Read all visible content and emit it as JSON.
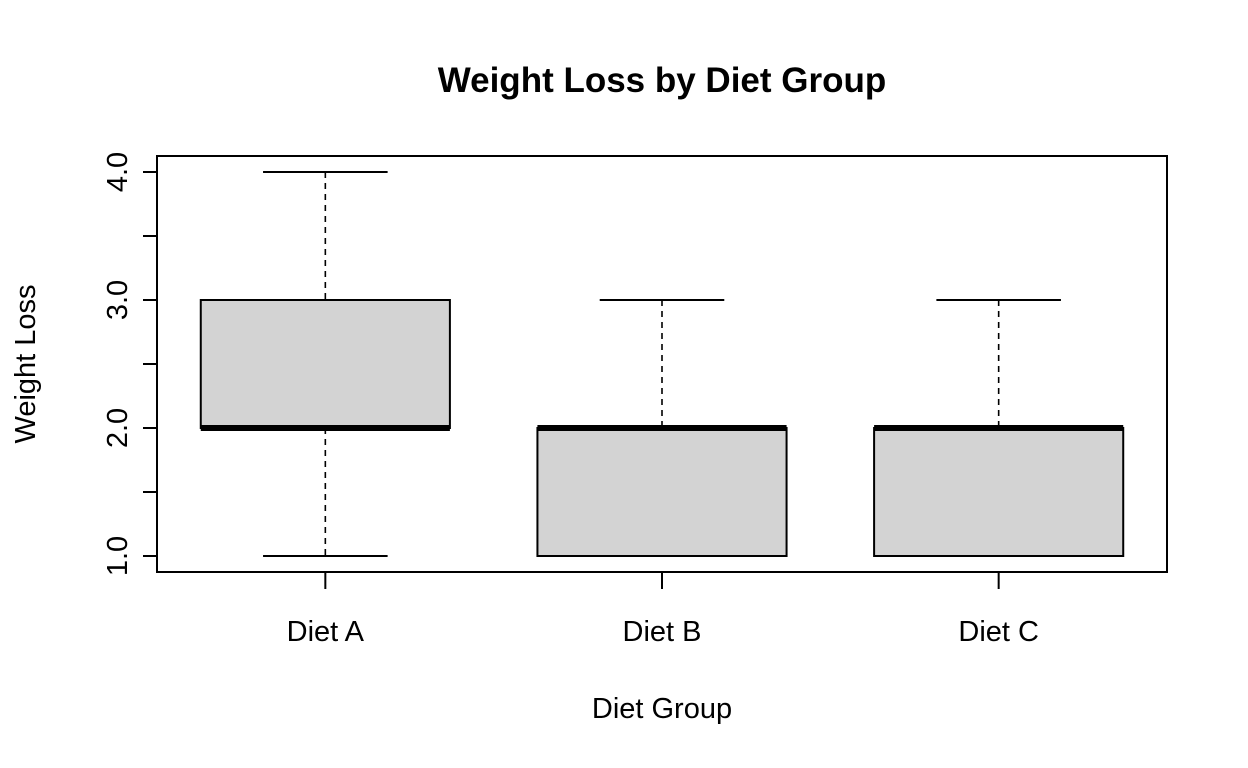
{
  "chart_data": {
    "type": "boxplot",
    "title": "Weight Loss by Diet Group",
    "xlabel": "Diet Group",
    "ylabel": "Weight Loss",
    "categories": [
      "Diet A",
      "Diet B",
      "Diet C"
    ],
    "boxes": [
      {
        "category": "Diet A",
        "min": 1.0,
        "q1": 2.0,
        "median": 2.0,
        "q3": 3.0,
        "max": 4.0
      },
      {
        "category": "Diet B",
        "min": 1.0,
        "q1": 1.0,
        "median": 2.0,
        "q3": 2.0,
        "max": 3.0
      },
      {
        "category": "Diet C",
        "min": 1.0,
        "q1": 1.0,
        "median": 2.0,
        "q3": 2.0,
        "max": 3.0
      }
    ],
    "ylim": [
      0.875,
      4.125
    ],
    "yticks": [
      1.0,
      1.5,
      2.0,
      2.5,
      3.0,
      3.5,
      4.0
    ],
    "ytick_labels": [
      "1.0",
      "2.0",
      "3.0",
      "4.0"
    ],
    "box_color": "#d3d3d3",
    "grid": false,
    "legend": "none"
  }
}
